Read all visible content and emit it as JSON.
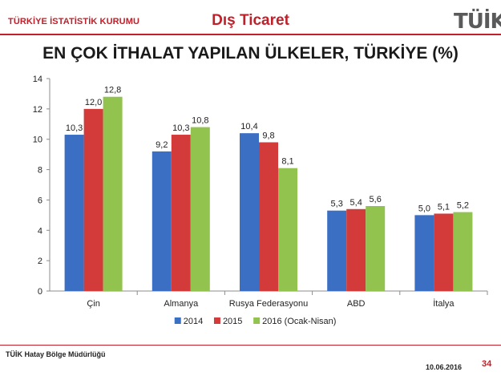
{
  "header": {
    "org_name": "TÜRKİYE İSTATİSTİK KURUMU",
    "section_title": "Dış Ticaret",
    "logo_text": "TÜİK"
  },
  "footer": {
    "office": "TÜİK Hatay Bölge Müdürlüğü",
    "date": "10.06.2016",
    "page_number": "34"
  },
  "colors": {
    "brand_red": "#c0202a",
    "series": [
      "#3a6fc4",
      "#d33a3a",
      "#92c34f"
    ]
  },
  "chart_data": {
    "type": "bar",
    "title": "EN ÇOK İTHALAT YAPILAN ÜLKELER, TÜRKİYE (%)",
    "xlabel": "",
    "ylabel": "",
    "categories": [
      "Çin",
      "Almanya",
      "Rusya Federasyonu",
      "ABD",
      "İtalya"
    ],
    "series": [
      {
        "name": "2014",
        "values": [
          10.3,
          9.2,
          10.4,
          5.3,
          5.0
        ],
        "labels": [
          "10,3",
          "9,2",
          "10,4",
          "5,3",
          "5,0"
        ]
      },
      {
        "name": "2015",
        "values": [
          12.0,
          10.3,
          9.8,
          5.4,
          5.1
        ],
        "labels": [
          "12,0",
          "10,3",
          "9,8",
          "5,4",
          "5,1"
        ]
      },
      {
        "name": "2016 (Ocak-Nisan)",
        "values": [
          12.8,
          10.8,
          8.1,
          5.6,
          5.2
        ],
        "labels": [
          "12,8",
          "10,8",
          "8,1",
          "5,6",
          "5,2"
        ]
      }
    ],
    "ylim": [
      0,
      14
    ],
    "yticks": [
      "0",
      "2",
      "4",
      "6",
      "8",
      "10",
      "12",
      "14"
    ],
    "grid": false,
    "legend": "bottom"
  }
}
